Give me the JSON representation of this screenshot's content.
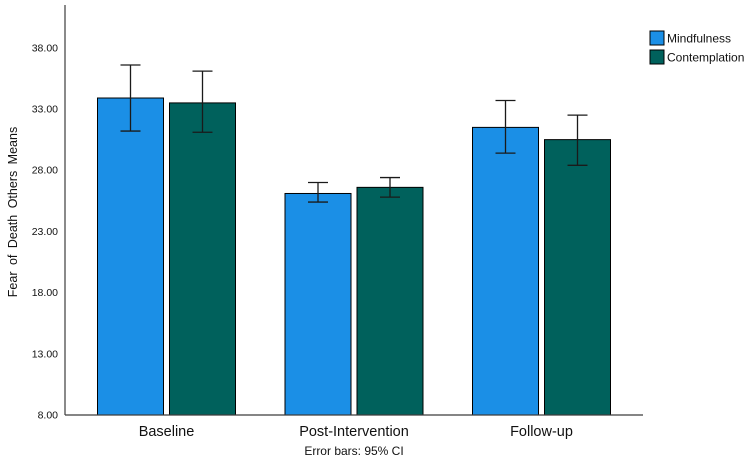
{
  "figure": {
    "background": "#ffffff",
    "axis_color": "#3c3c3c",
    "bar_stroke": "#000000",
    "error_bar_color": "#1a1a1a",
    "text_color": "#111111"
  },
  "chart_data": {
    "type": "bar",
    "title": "",
    "xlabel": "",
    "ylabel": "Fear of Death Others Means",
    "caption": "Error bars: 95% CI",
    "error_bars": "95% CI",
    "grid": false,
    "legend_position": "top-right",
    "categories": [
      "Baseline",
      "Post-Intervention",
      "Follow-up"
    ],
    "series": [
      {
        "name": "Mindfulness",
        "color": "#1b8fe6",
        "values": [
          33.9,
          26.1,
          31.5
        ],
        "ci_low": [
          31.2,
          25.4,
          29.4
        ],
        "ci_high": [
          36.6,
          27.0,
          33.7
        ]
      },
      {
        "name": "Contemplation",
        "color": "#00615c",
        "values": [
          33.5,
          26.6,
          30.5
        ],
        "ci_low": [
          31.1,
          25.8,
          28.4
        ],
        "ci_high": [
          36.1,
          27.4,
          32.5
        ]
      }
    ],
    "ylim": [
      8,
      41.5
    ],
    "yticks": [
      8,
      13,
      18,
      23,
      28,
      33,
      38
    ],
    "ytick_format": "0.00"
  }
}
